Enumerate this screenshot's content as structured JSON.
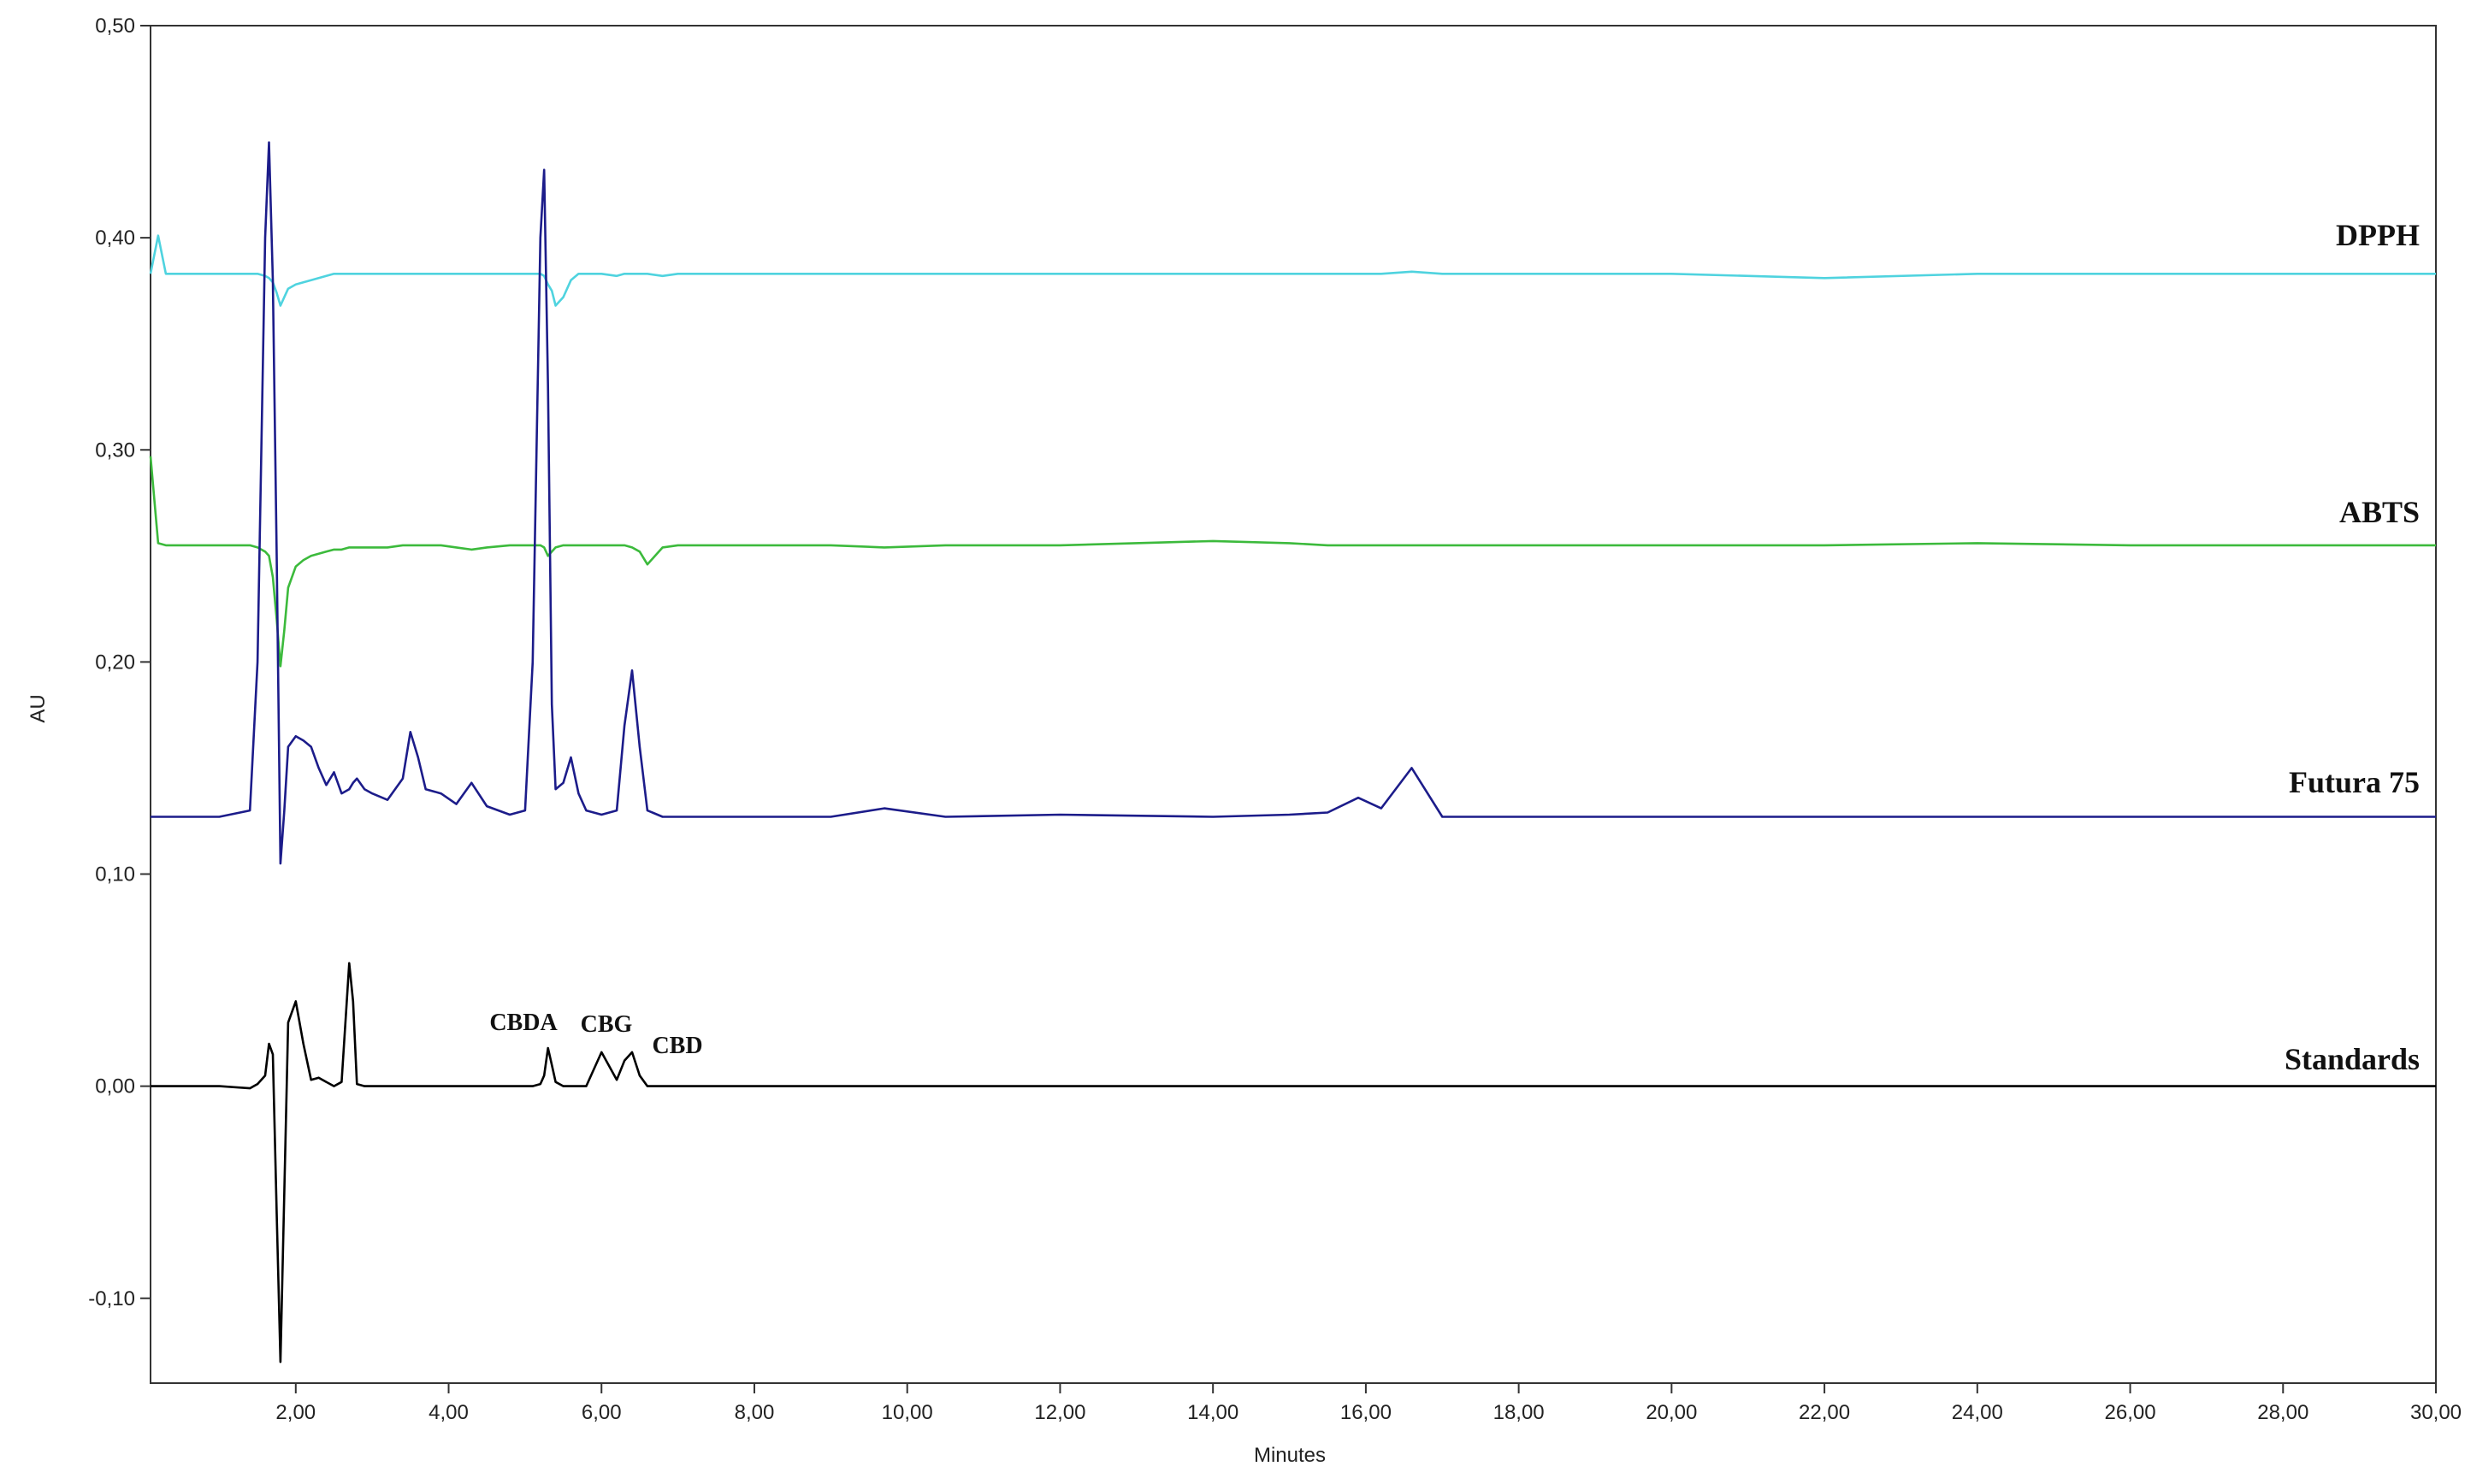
{
  "chart_data": {
    "type": "line",
    "x_label": "Minutes",
    "y_label": "AU",
    "xlim": [
      0.1,
      30
    ],
    "ylim": [
      -0.14,
      0.5
    ],
    "xticks": [
      {
        "value": 2,
        "label": "2,00"
      },
      {
        "value": 4,
        "label": "4,00"
      },
      {
        "value": 6,
        "label": "6,00"
      },
      {
        "value": 8,
        "label": "8,00"
      },
      {
        "value": 10,
        "label": "10,00"
      },
      {
        "value": 12,
        "label": "12,00"
      },
      {
        "value": 14,
        "label": "14,00"
      },
      {
        "value": 16,
        "label": "16,00"
      },
      {
        "value": 18,
        "label": "18,00"
      },
      {
        "value": 20,
        "label": "20,00"
      },
      {
        "value": 22,
        "label": "22,00"
      },
      {
        "value": 24,
        "label": "24,00"
      },
      {
        "value": 26,
        "label": "26,00"
      },
      {
        "value": 28,
        "label": "28,00"
      },
      {
        "value": 30,
        "label": "30,00"
      }
    ],
    "yticks": [
      {
        "value": -0.1,
        "label": "-0,10"
      },
      {
        "value": 0,
        "label": "0,00"
      },
      {
        "value": 0.1,
        "label": "0,10"
      },
      {
        "value": 0.2,
        "label": "0,20"
      },
      {
        "value": 0.3,
        "label": "0,30"
      },
      {
        "value": 0.4,
        "label": "0,40"
      },
      {
        "value": 0.5,
        "label": "0,50"
      }
    ],
    "annotations": [
      "CBDA",
      "CBG",
      "CBD"
    ],
    "x": [
      0.1,
      0.2,
      0.3,
      0.5,
      1.0,
      1.4,
      1.5,
      1.6,
      1.65,
      1.7,
      1.75,
      1.8,
      1.85,
      1.9,
      2.0,
      2.1,
      2.2,
      2.3,
      2.4,
      2.5,
      2.6,
      2.7,
      2.75,
      2.8,
      2.9,
      3.0,
      3.2,
      3.4,
      3.5,
      3.6,
      3.7,
      3.9,
      4.1,
      4.3,
      4.5,
      4.8,
      5.0,
      5.1,
      5.2,
      5.25,
      5.3,
      5.35,
      5.4,
      5.5,
      5.6,
      5.7,
      5.8,
      6.0,
      6.2,
      6.3,
      6.4,
      6.5,
      6.6,
      6.8,
      7.0,
      8.0,
      9.0,
      9.7,
      10.5,
      12.0,
      14.0,
      15.0,
      15.5,
      15.9,
      16.2,
      16.6,
      17.0,
      17.5,
      20.0,
      22.0,
      24.0,
      26.0,
      28.0,
      30.0
    ],
    "series": [
      {
        "name": "DPPH",
        "color": "#4fd3df",
        "values": [
          0.383,
          0.401,
          0.383,
          0.383,
          0.383,
          0.383,
          0.383,
          0.382,
          0.381,
          0.379,
          0.374,
          0.368,
          0.372,
          0.376,
          0.378,
          0.379,
          0.38,
          0.381,
          0.382,
          0.383,
          0.383,
          0.383,
          0.383,
          0.383,
          0.383,
          0.383,
          0.383,
          0.383,
          0.383,
          0.383,
          0.383,
          0.383,
          0.383,
          0.383,
          0.383,
          0.383,
          0.383,
          0.383,
          0.383,
          0.382,
          0.378,
          0.375,
          0.368,
          0.372,
          0.38,
          0.383,
          0.383,
          0.383,
          0.382,
          0.383,
          0.383,
          0.383,
          0.383,
          0.382,
          0.383,
          0.383,
          0.383,
          0.383,
          0.383,
          0.383,
          0.383,
          0.383,
          0.383,
          0.383,
          0.383,
          0.384,
          0.383,
          0.383,
          0.383,
          0.381,
          0.383,
          0.383,
          0.383,
          0.383
        ]
      },
      {
        "name": "ABTS",
        "color": "#3cba3c",
        "values": [
          0.297,
          0.256,
          0.255,
          0.255,
          0.255,
          0.255,
          0.254,
          0.252,
          0.25,
          0.24,
          0.22,
          0.198,
          0.215,
          0.235,
          0.245,
          0.248,
          0.25,
          0.251,
          0.252,
          0.253,
          0.253,
          0.254,
          0.254,
          0.254,
          0.254,
          0.254,
          0.254,
          0.255,
          0.255,
          0.255,
          0.255,
          0.255,
          0.254,
          0.253,
          0.254,
          0.255,
          0.255,
          0.255,
          0.255,
          0.254,
          0.25,
          0.252,
          0.254,
          0.255,
          0.255,
          0.255,
          0.255,
          0.255,
          0.255,
          0.255,
          0.254,
          0.252,
          0.246,
          0.254,
          0.255,
          0.255,
          0.255,
          0.254,
          0.255,
          0.255,
          0.257,
          0.256,
          0.255,
          0.255,
          0.255,
          0.255,
          0.255,
          0.255,
          0.255,
          0.255,
          0.256,
          0.255,
          0.255,
          0.255
        ]
      },
      {
        "name": "Futura 75",
        "color": "#1c1c8a",
        "values": [
          0.127,
          0.127,
          0.127,
          0.127,
          0.127,
          0.13,
          0.2,
          0.4,
          0.445,
          0.38,
          0.25,
          0.105,
          0.13,
          0.16,
          0.165,
          0.163,
          0.16,
          0.15,
          0.142,
          0.148,
          0.138,
          0.14,
          0.143,
          0.145,
          0.14,
          0.138,
          0.135,
          0.145,
          0.167,
          0.155,
          0.14,
          0.138,
          0.133,
          0.143,
          0.132,
          0.128,
          0.13,
          0.2,
          0.4,
          0.432,
          0.33,
          0.18,
          0.14,
          0.143,
          0.155,
          0.138,
          0.13,
          0.128,
          0.13,
          0.17,
          0.196,
          0.16,
          0.13,
          0.127,
          0.127,
          0.127,
          0.127,
          0.131,
          0.127,
          0.128,
          0.127,
          0.128,
          0.129,
          0.136,
          0.131,
          0.15,
          0.127,
          0.127,
          0.127,
          0.127,
          0.127,
          0.127,
          0.127,
          0.127
        ]
      },
      {
        "name": "Standards",
        "color": "#000000",
        "values": [
          0,
          0,
          0,
          0,
          0,
          -0.001,
          0.001,
          0.005,
          0.02,
          0.015,
          -0.06,
          -0.13,
          -0.05,
          0.03,
          0.04,
          0.02,
          0.003,
          0.004,
          0.002,
          0,
          0.002,
          0.058,
          0.04,
          0.001,
          0,
          0,
          0,
          0,
          0,
          0,
          0,
          0,
          0,
          0,
          0,
          0,
          0,
          0,
          0.001,
          0.005,
          0.018,
          0.01,
          0.002,
          0,
          0,
          0,
          0,
          0.016,
          0.003,
          0.012,
          0.016,
          0.005,
          0,
          0,
          0,
          0,
          0,
          0,
          0,
          0,
          0,
          0,
          0,
          0,
          0,
          0,
          0,
          0,
          0,
          0,
          0,
          0,
          0,
          0
        ]
      }
    ]
  }
}
